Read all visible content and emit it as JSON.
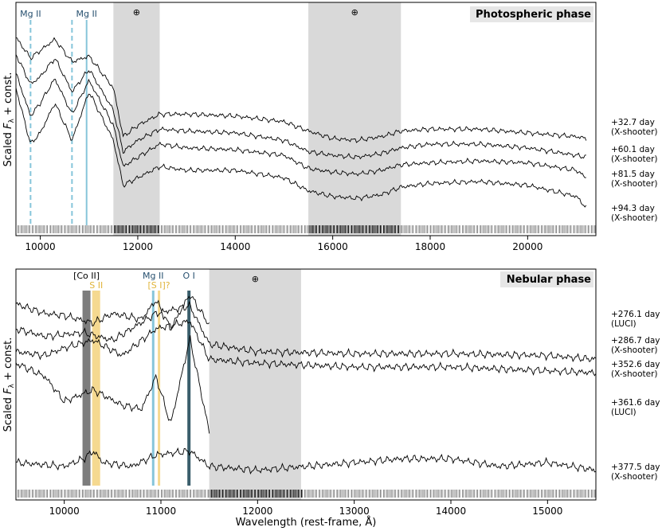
{
  "colors": {
    "mg": "#86c5da",
    "mg_label": "#27506f",
    "s": "#f5d990",
    "s_label": "#e0b43a",
    "co": "#7d7d7d",
    "o": "#3a5e6b",
    "telluric": "#d9d9d9",
    "spectrum": "#000000"
  },
  "chart_data": [
    {
      "type": "line",
      "title": "Photospheric phase",
      "ylabel": "Scaled F_λ + const.",
      "ylabel_prefix": "Scaled ",
      "ylabel_F": "F",
      "ylabel_sub": "λ",
      "ylabel_suffix": " + const.",
      "xlim": [
        9500,
        21400
      ],
      "xticks": [
        10000,
        12000,
        14000,
        16000,
        18000,
        20000
      ],
      "telluric_bands": [
        [
          11500,
          12450
        ],
        [
          15500,
          17400
        ]
      ],
      "telluric_symbol": "⊕",
      "lines": [
        {
          "label": "Mg II",
          "wavelength": 9800,
          "style": "dashed"
        },
        {
          "label": "",
          "wavelength": 10650,
          "style": "dashed"
        },
        {
          "label": "Mg II",
          "wavelength": 10950,
          "style": "solid"
        }
      ],
      "series": [
        {
          "epoch": "+32.7 day",
          "instrument": "(X-shooter)",
          "x": [
            9500,
            9800,
            10000,
            10300,
            10650,
            11000,
            11500,
            11700,
            12000,
            12450,
            13000,
            14000,
            15000,
            15500,
            16000,
            16500,
            17000,
            17400,
            18000,
            19000,
            20000,
            21000,
            21200
          ],
          "y": [
            0.97,
            0.86,
            0.9,
            0.96,
            0.84,
            0.87,
            0.7,
            0.44,
            0.5,
            0.56,
            0.56,
            0.55,
            0.52,
            0.47,
            0.43,
            0.42,
            0.44,
            0.47,
            0.48,
            0.48,
            0.46,
            0.44,
            0.43
          ]
        },
        {
          "epoch": "+60.1 day",
          "instrument": "(X-shooter)",
          "x": [
            9500,
            9800,
            10000,
            10300,
            10650,
            11000,
            11500,
            11700,
            12000,
            12450,
            13000,
            14000,
            15000,
            15500,
            16000,
            16500,
            17000,
            17400,
            18000,
            19000,
            20000,
            21000,
            21200
          ],
          "y": [
            0.88,
            0.72,
            0.76,
            0.86,
            0.68,
            0.8,
            0.58,
            0.36,
            0.42,
            0.48,
            0.47,
            0.46,
            0.42,
            0.36,
            0.34,
            0.33,
            0.35,
            0.38,
            0.4,
            0.4,
            0.38,
            0.34,
            0.33
          ]
        },
        {
          "epoch": "+81.5 day",
          "instrument": "(X-shooter)",
          "x": [
            9500,
            9800,
            10000,
            10300,
            10650,
            11000,
            11500,
            11700,
            12000,
            12450,
            13000,
            14000,
            15000,
            15500,
            16000,
            16500,
            17000,
            17400,
            18000,
            19000,
            20000,
            21000,
            21200
          ],
          "y": [
            0.78,
            0.55,
            0.62,
            0.75,
            0.56,
            0.74,
            0.5,
            0.28,
            0.33,
            0.4,
            0.38,
            0.37,
            0.34,
            0.27,
            0.25,
            0.24,
            0.26,
            0.29,
            0.3,
            0.31,
            0.3,
            0.26,
            0.22
          ]
        },
        {
          "epoch": "+94.3 day",
          "instrument": "(X-shooter)",
          "x": [
            9500,
            9800,
            10000,
            10300,
            10650,
            11000,
            11500,
            11700,
            12000,
            12450,
            13000,
            14000,
            15000,
            15500,
            16000,
            16500,
            17000,
            17400,
            18000,
            19000,
            20000,
            21000,
            21200
          ],
          "y": [
            0.7,
            0.4,
            0.46,
            0.62,
            0.42,
            0.68,
            0.42,
            0.18,
            0.22,
            0.28,
            0.26,
            0.26,
            0.22,
            0.15,
            0.12,
            0.11,
            0.13,
            0.17,
            0.19,
            0.2,
            0.18,
            0.12,
            0.06
          ]
        }
      ]
    },
    {
      "type": "line",
      "title": "Nebular phase",
      "xlabel": "Wavelength (rest-frame, Å)",
      "ylabel": "Scaled F_λ + const.",
      "ylabel_prefix": "Scaled ",
      "ylabel_F": "F",
      "ylabel_sub": "λ",
      "ylabel_suffix": " + const.",
      "xlim": [
        9500,
        15500
      ],
      "xticks": [
        10000,
        11000,
        12000,
        13000,
        14000,
        15000
      ],
      "telluric_bands": [
        [
          11500,
          12450
        ]
      ],
      "telluric_symbol": "⊕",
      "lines": [
        {
          "label": "[Co II]",
          "wavelength": 10230,
          "kind": "co"
        },
        {
          "label": "S II",
          "wavelength": 10330,
          "kind": "s"
        },
        {
          "label": "Mg II",
          "wavelength": 10920,
          "kind": "mg"
        },
        {
          "label": "[S I]?",
          "wavelength": 10980,
          "kind": "s"
        },
        {
          "label": "O I",
          "wavelength": 11290,
          "kind": "o"
        }
      ],
      "series": [
        {
          "epoch": "+276.1 day",
          "instrument": "(LUCI)",
          "x": [
            9500,
            9800,
            10000,
            10300,
            10500,
            10800,
            10950,
            11100,
            11300,
            11500
          ],
          "y": [
            0.93,
            0.88,
            0.87,
            0.83,
            0.88,
            0.85,
            0.95,
            0.8,
            0.98,
            0.82
          ]
        },
        {
          "epoch": "+286.7 day",
          "instrument": "(X-shooter)",
          "x": [
            9500,
            9800,
            10200,
            10500,
            10950,
            11300,
            11500,
            12000,
            13000,
            14000,
            15000,
            15500
          ],
          "y": [
            0.8,
            0.76,
            0.78,
            0.74,
            0.88,
            0.92,
            0.72,
            0.68,
            0.67,
            0.67,
            0.66,
            0.64
          ]
        },
        {
          "epoch": "+352.6 day",
          "instrument": "(X-shooter)",
          "x": [
            9500,
            9800,
            10000,
            10300,
            10600,
            10950,
            11300,
            11500,
            12000,
            13000,
            14000,
            15000,
            15500
          ],
          "y": [
            0.68,
            0.66,
            0.7,
            0.74,
            0.66,
            0.8,
            0.84,
            0.64,
            0.62,
            0.6,
            0.6,
            0.58,
            0.57
          ]
        },
        {
          "epoch": "+361.6 day",
          "instrument": "(LUCI)",
          "x": [
            9500,
            9800,
            10000,
            10300,
            10600,
            10800,
            10950,
            11100,
            11300,
            11500
          ],
          "y": [
            0.62,
            0.55,
            0.42,
            0.48,
            0.4,
            0.38,
            0.55,
            0.3,
            0.75,
            0.26
          ]
        },
        {
          "epoch": "+377.5 day",
          "instrument": "(X-shooter)",
          "x": [
            9500,
            10000,
            10200,
            10300,
            10400,
            10700,
            10950,
            11300,
            11500,
            12000,
            13000,
            13500,
            14000,
            14500,
            15000,
            15500
          ],
          "y": [
            0.1,
            0.08,
            0.12,
            0.16,
            0.1,
            0.08,
            0.14,
            0.16,
            0.08,
            0.06,
            0.1,
            0.12,
            0.12,
            0.08,
            0.1,
            0.06
          ]
        }
      ]
    }
  ]
}
